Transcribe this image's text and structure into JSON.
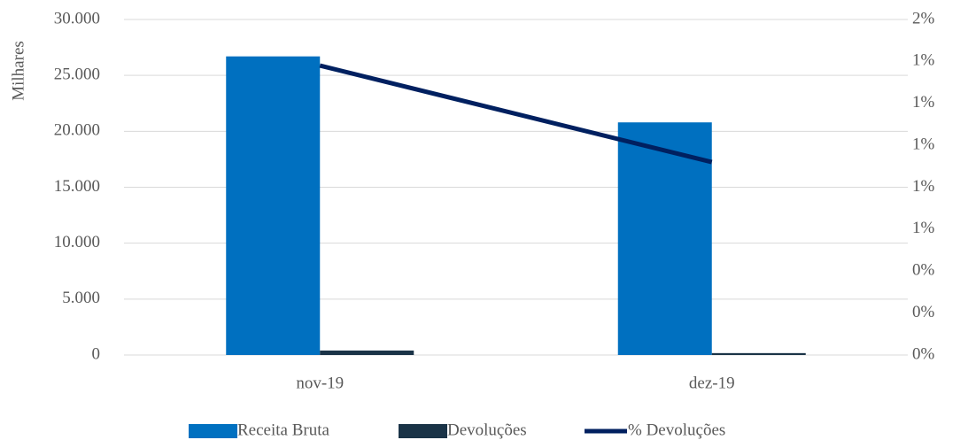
{
  "chart_data": {
    "type": "bar",
    "y_label": "Milhares",
    "categories": [
      "nov-19",
      "dez-19"
    ],
    "series": [
      {
        "name": "Receita Bruta",
        "color": "#0070c0",
        "values": [
          26700,
          20800
        ]
      },
      {
        "name": "Devoluções",
        "color": "#1a3347",
        "values": [
          400,
          170
        ]
      },
      {
        "name": "% Devoluções",
        "color": "#002060",
        "type": "line",
        "axis": "y2",
        "values": [
          1.38,
          0.92
        ]
      }
    ],
    "ylim": [
      0,
      30000
    ],
    "yticks": [
      0,
      {
        "value": 5000,
        "label": "5.000"
      },
      {
        "value": 10000,
        "label": "10.000"
      },
      {
        "value": 15000,
        "label": "15.000"
      },
      {
        "value": 20000,
        "label": "20.000"
      },
      {
        "value": 25000,
        "label": "25.000"
      },
      {
        "value": 30000,
        "label": "30.000"
      }
    ],
    "y2lim": [
      0,
      1.6
    ],
    "y2ticks": [
      {
        "value": 0,
        "label": "0%"
      },
      {
        "value": 0.2,
        "label": "0%"
      },
      {
        "value": 0.4,
        "label": "0%"
      },
      {
        "value": 0.6,
        "label": "1%"
      },
      {
        "value": 0.8,
        "label": "1%"
      },
      {
        "value": 1.0,
        "label": "1%"
      },
      {
        "value": 1.2,
        "label": "1%"
      },
      {
        "value": 1.4,
        "label": "1%"
      },
      {
        "value": 1.6,
        "label": "2%"
      }
    ],
    "grid": true,
    "legend": "bottom"
  }
}
